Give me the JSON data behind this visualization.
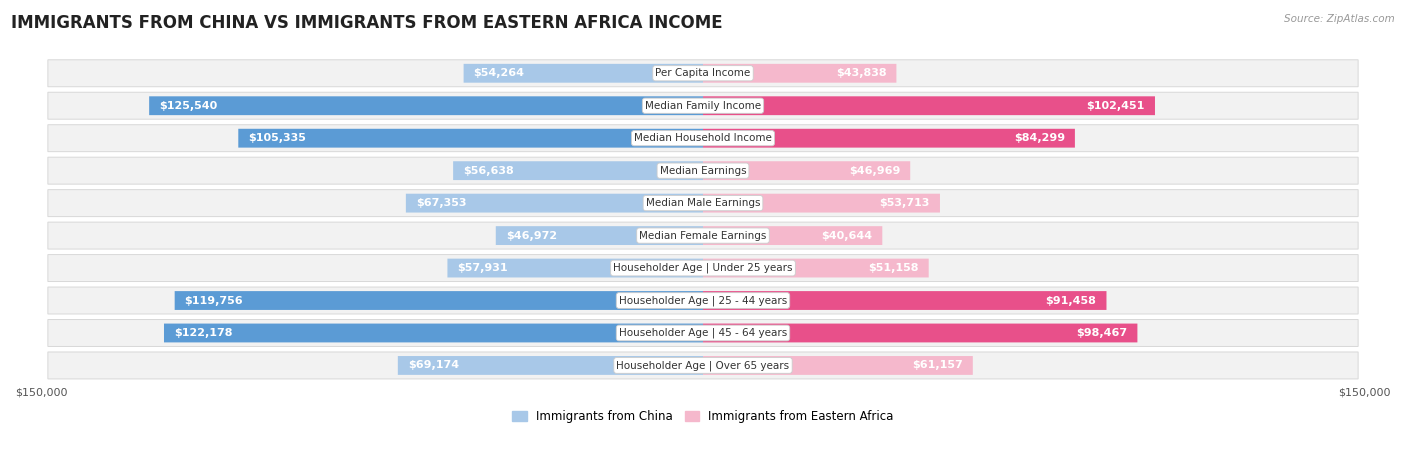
{
  "title": "IMMIGRANTS FROM CHINA VS IMMIGRANTS FROM EASTERN AFRICA INCOME",
  "source": "Source: ZipAtlas.com",
  "categories": [
    "Per Capita Income",
    "Median Family Income",
    "Median Household Income",
    "Median Earnings",
    "Median Male Earnings",
    "Median Female Earnings",
    "Householder Age | Under 25 years",
    "Householder Age | 25 - 44 years",
    "Householder Age | 45 - 64 years",
    "Householder Age | Over 65 years"
  ],
  "china_values": [
    54264,
    125540,
    105335,
    56638,
    67353,
    46972,
    57931,
    119756,
    122178,
    69174
  ],
  "africa_values": [
    43838,
    102451,
    84299,
    46969,
    53713,
    40644,
    51158,
    91458,
    98467,
    61157
  ],
  "china_color_light": "#a8c8e8",
  "china_color_dark": "#5b9bd5",
  "africa_color_light": "#f5b8cc",
  "africa_color_dark": "#e8508a",
  "inside_label_color": "#ffffff",
  "outside_label_color": "#555555",
  "max_value": 150000,
  "dark_threshold": 70000,
  "background_color": "#ffffff",
  "row_bg_color": "#f2f2f2",
  "row_border_color": "#d8d8d8",
  "legend_china": "Immigrants from China",
  "legend_africa": "Immigrants from Eastern Africa",
  "title_fontsize": 12,
  "label_fontsize": 8.0,
  "cat_fontsize": 7.5,
  "tick_fontsize": 8.0
}
